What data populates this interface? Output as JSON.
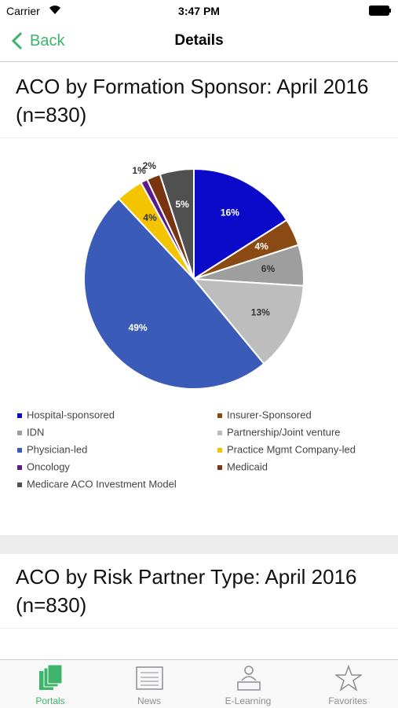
{
  "status_bar": {
    "carrier": "Carrier",
    "time": "3:47 PM"
  },
  "nav": {
    "back": "Back",
    "title": "Details"
  },
  "sections": [
    {
      "title": "ACO by Formation Sponsor: April 2016 (n=830)"
    },
    {
      "title": "ACO by Risk Partner Type: April 2016 (n=830)"
    }
  ],
  "chart_data": {
    "type": "pie",
    "categories": [
      "Hospital-sponsored",
      "Insurer-Sponsored",
      "IDN",
      "Partnership/Joint venture",
      "Physician-led",
      "Practice Mgmt Company-led",
      "Oncology",
      "Medicaid",
      "Medicare ACO Investment Model"
    ],
    "values": [
      16,
      4,
      6,
      13,
      49,
      4,
      1,
      2,
      5
    ],
    "value_labels": [
      "16%",
      "4%",
      "6%",
      "13%",
      "49%",
      "4%",
      "1%",
      "2%",
      "5%"
    ],
    "colors": [
      "#0a0ac8",
      "#8b4a14",
      "#9e9e9e",
      "#bdbdbd",
      "#3b5bb8",
      "#f5c400",
      "#5a1a8a",
      "#7a3410",
      "#505050"
    ]
  },
  "tab_bar": {
    "items": [
      "Portals",
      "News",
      "E-Learning",
      "Favorites"
    ]
  }
}
